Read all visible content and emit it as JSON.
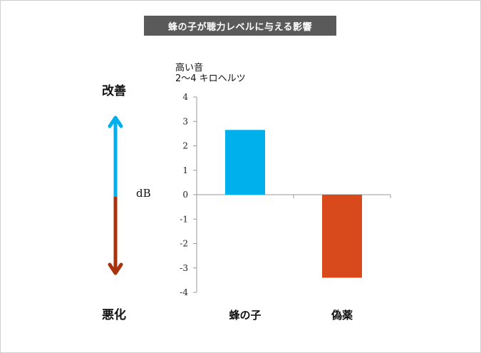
{
  "page_title": "蜂の子が聴力レベルに与える影響",
  "indicator": {
    "up_label": "改善",
    "down_label": "悪化",
    "unit_label": "dB",
    "up_color": "#00b0ec",
    "down_color": "#a8330e"
  },
  "chart_data": {
    "type": "bar",
    "title": "高い音",
    "subtitle": "2～4 キロヘルツ",
    "categories": [
      "蜂の子",
      "偽薬"
    ],
    "values": [
      2.65,
      -3.4
    ],
    "colors": [
      "#00b0ec",
      "#d84a1b"
    ],
    "ylim": [
      -4,
      4
    ],
    "yticks": [
      "4",
      "3",
      "2",
      "1",
      "0",
      "-1",
      "-2",
      "-3",
      "-4"
    ],
    "ylabel": "dB",
    "xlabel": "",
    "grid": false
  }
}
